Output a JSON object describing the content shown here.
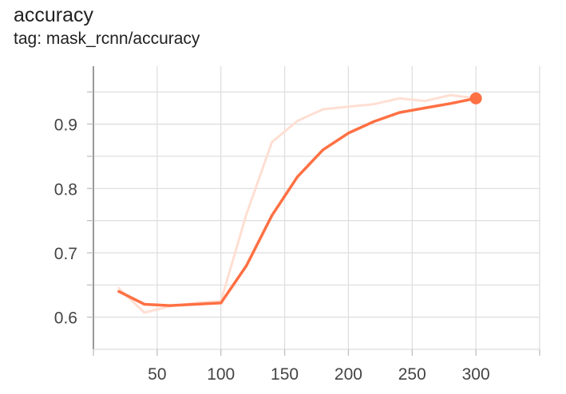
{
  "card": {
    "title": "accuracy",
    "tag_line": "tag: mask_rcnn/accuracy"
  },
  "chart_data": {
    "type": "line",
    "title": "accuracy",
    "subtitle": "tag: mask_rcnn/accuracy",
    "xlabel": "",
    "ylabel": "",
    "xlim": [
      0,
      350
    ],
    "ylim": [
      0.55,
      0.99
    ],
    "x_ticks": [
      50,
      100,
      150,
      200,
      250,
      300
    ],
    "x_tick_labels": [
      "50",
      "100",
      "150",
      "200",
      "250",
      "300"
    ],
    "y_ticks": [
      0.6,
      0.7,
      0.8,
      0.9
    ],
    "y_tick_labels": [
      "0.6",
      "0.7",
      "0.8",
      "0.9"
    ],
    "grid": true,
    "series": [
      {
        "role": "raw",
        "color": "#ffdfd3",
        "x": [
          20,
          40,
          60,
          80,
          100,
          120,
          140,
          160,
          180,
          200,
          220,
          240,
          260,
          280,
          300
        ],
        "y": [
          0.645,
          0.607,
          0.617,
          0.622,
          0.625,
          0.76,
          0.872,
          0.905,
          0.923,
          0.927,
          0.931,
          0.94,
          0.936,
          0.945,
          0.94
        ]
      },
      {
        "role": "smoothed",
        "color": "#ff7043",
        "x": [
          20,
          40,
          60,
          80,
          100,
          120,
          140,
          160,
          180,
          200,
          220,
          240,
          260,
          280,
          300
        ],
        "y": [
          0.64,
          0.62,
          0.618,
          0.62,
          0.622,
          0.68,
          0.758,
          0.818,
          0.86,
          0.886,
          0.904,
          0.918,
          0.925,
          0.932,
          0.94
        ]
      }
    ],
    "last_point": {
      "x": 300,
      "y": 0.94,
      "color": "#ff7043"
    }
  }
}
